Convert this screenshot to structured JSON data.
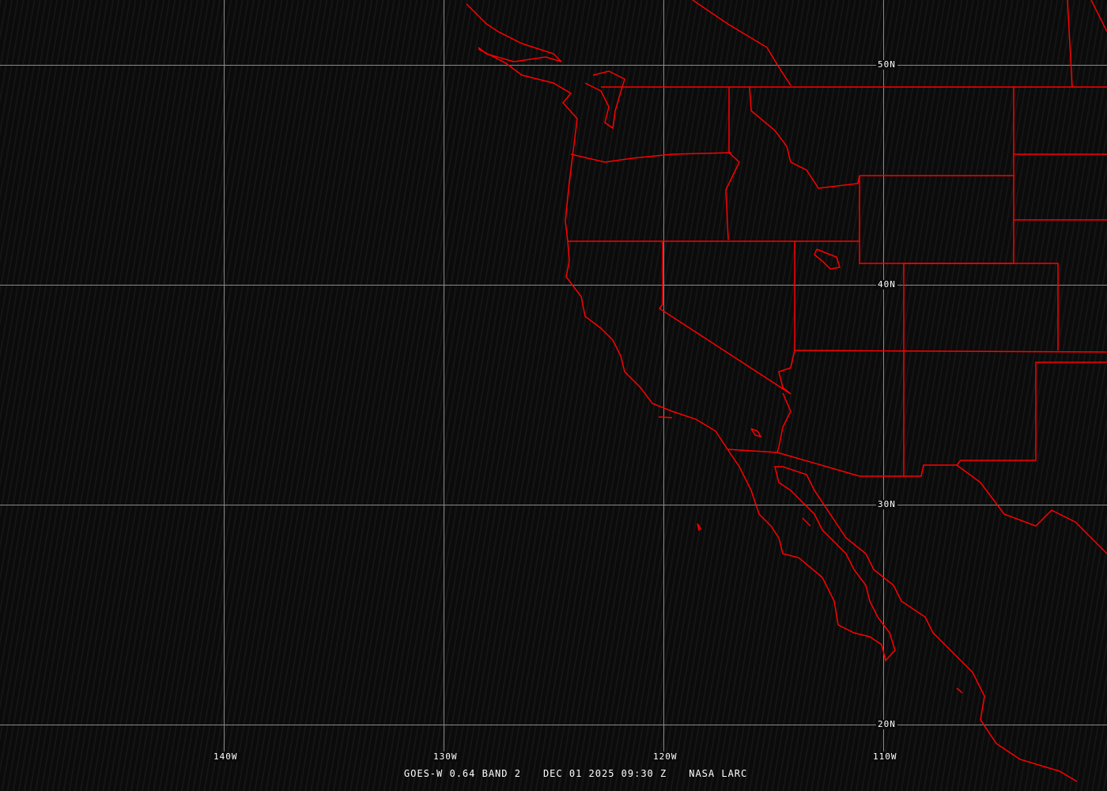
{
  "map": {
    "satellite_caption": "GOES-W 0.64 BAND 2",
    "datetime_caption": "DEC 01 2025 09:30 Z",
    "credit_caption": "NASA LARC",
    "longitude_labels": [
      "140W",
      "130W",
      "120W",
      "110W"
    ],
    "latitude_labels": [
      "50N",
      "40N",
      "30N",
      "20N"
    ],
    "colors": {
      "borders": "#ff0000",
      "grid": "#8a8a8a",
      "background": "#0b0b0b",
      "text": "#ffffff"
    }
  }
}
